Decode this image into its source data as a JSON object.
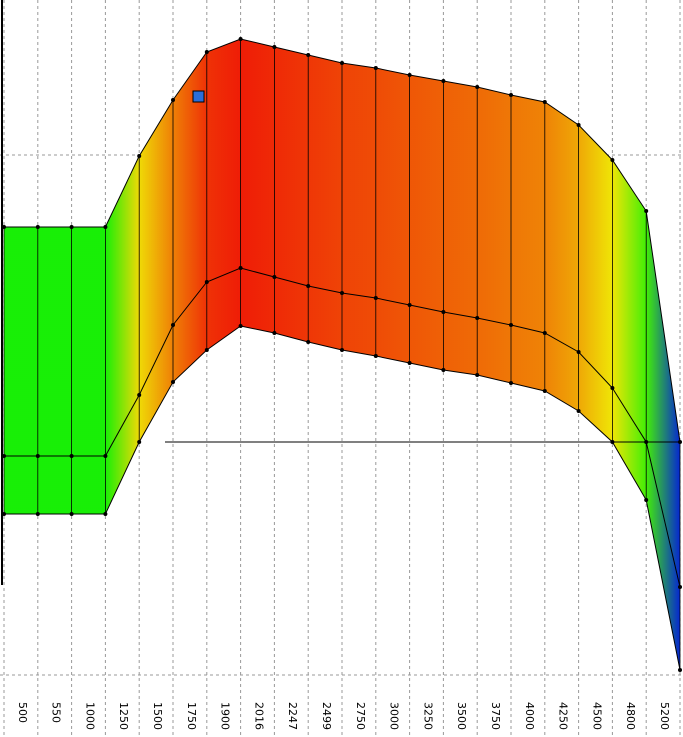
{
  "chart_data": {
    "type": "surface",
    "categories": [
      null,
      "500",
      "550",
      "1000",
      "1250",
      "1500",
      "1750",
      "1900",
      "2016",
      "2247",
      "2499",
      "2750",
      "3000",
      "3250",
      "3500",
      "3750",
      "4000",
      "4250",
      "4500",
      "4800",
      "5200"
    ],
    "series": [
      {
        "values": [
          510,
          510,
          510,
          510,
          581,
          637,
          685,
          698,
          690,
          682,
          674,
          669,
          662,
          656,
          650,
          642,
          635,
          612,
          577,
          526,
          295
        ]
      },
      {
        "values": [
          281,
          281,
          281,
          281,
          342,
          412,
          455,
          469,
          460,
          451,
          444,
          439,
          432,
          425,
          419,
          412,
          404,
          385,
          349,
          295,
          150
        ]
      },
      {
        "values": [
          223,
          223,
          223,
          223,
          295,
          355,
          387,
          411,
          404,
          395,
          387,
          381,
          374,
          367,
          362,
          354,
          346,
          326,
          295,
          237,
          67
        ]
      }
    ],
    "grid": true
  }
}
